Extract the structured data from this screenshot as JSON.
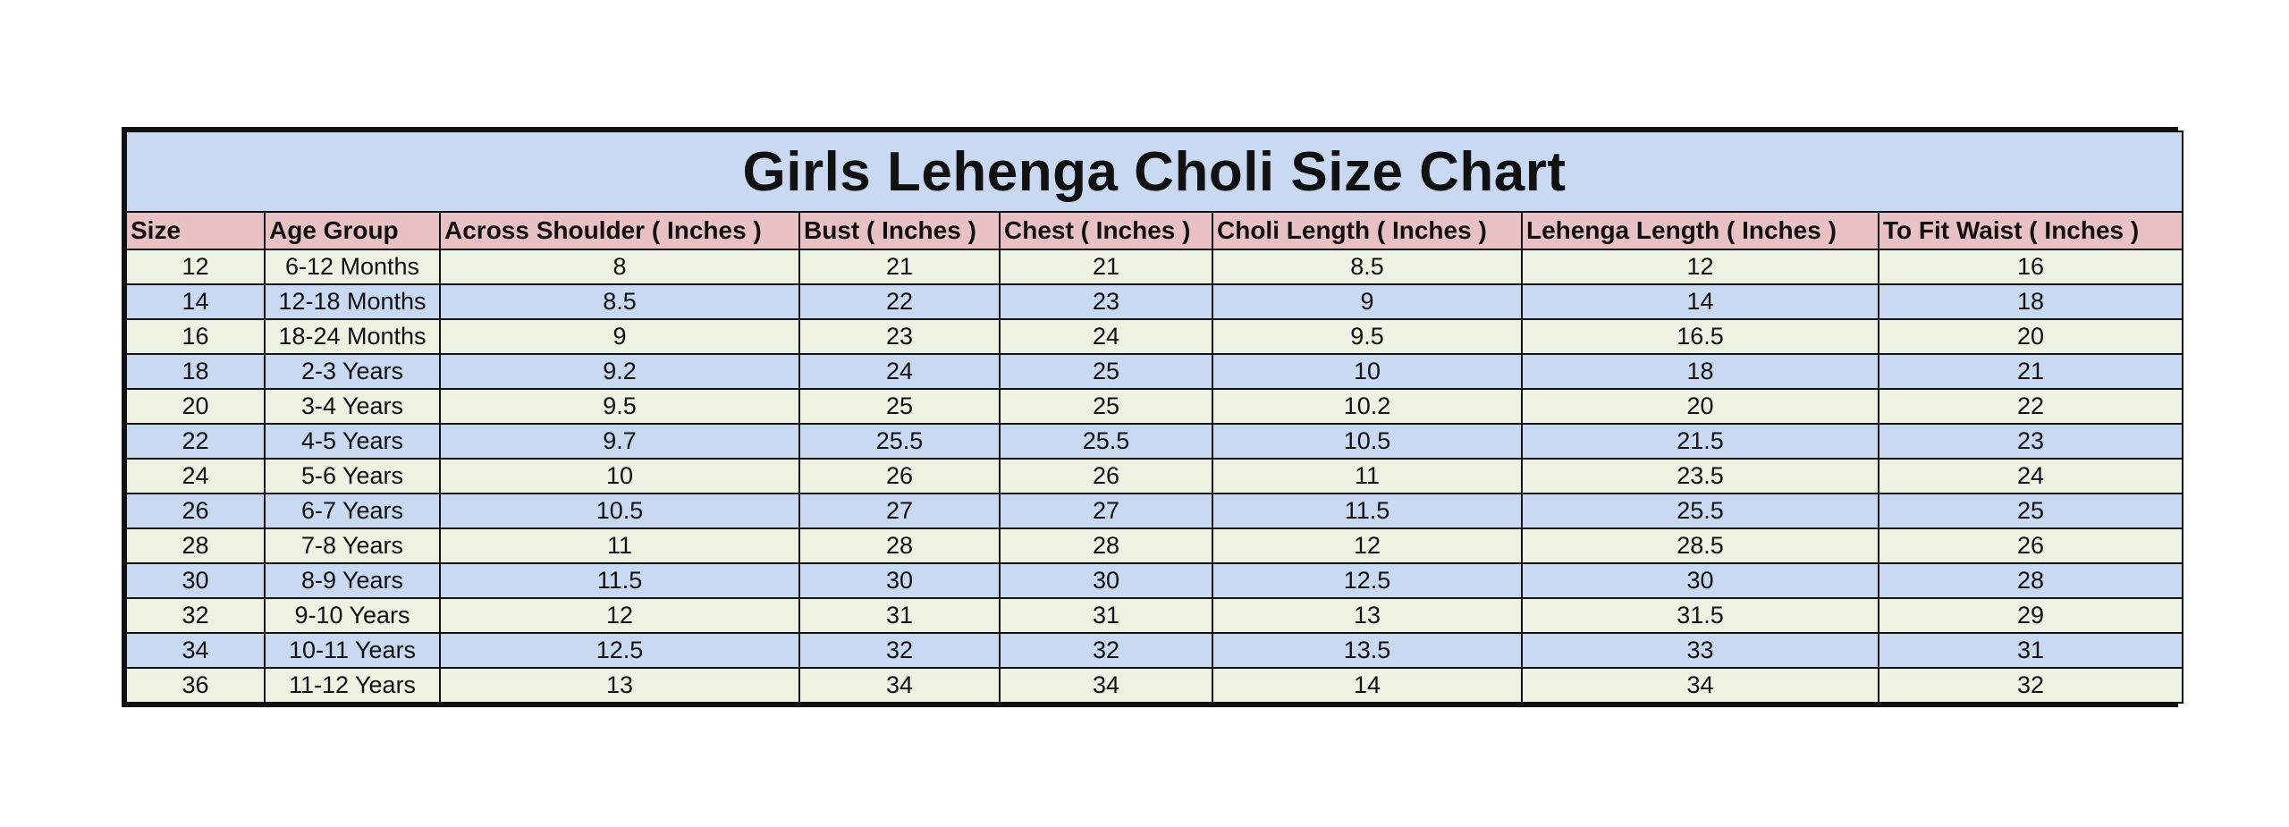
{
  "title": "Girls Lehenga Choli Size Chart",
  "columns": [
    "Size",
    "Age Group",
    "Across Shoulder ( Inches )",
    "Bust ( Inches )",
    "Chest ( Inches )",
    "Choli Length ( Inches )",
    "Lehenga Length ( Inches )",
    "To Fit Waist ( Inches )"
  ],
  "rows": [
    [
      "12",
      "6-12 Months",
      "8",
      "21",
      "21",
      "8.5",
      "12",
      "16"
    ],
    [
      "14",
      "12-18 Months",
      "8.5",
      "22",
      "23",
      "9",
      "14",
      "18"
    ],
    [
      "16",
      "18-24 Months",
      "9",
      "23",
      "24",
      "9.5",
      "16.5",
      "20"
    ],
    [
      "18",
      "2-3 Years",
      "9.2",
      "24",
      "25",
      "10",
      "18",
      "21"
    ],
    [
      "20",
      "3-4 Years",
      "9.5",
      "25",
      "25",
      "10.2",
      "20",
      "22"
    ],
    [
      "22",
      "4-5 Years",
      "9.7",
      "25.5",
      "25.5",
      "10.5",
      "21.5",
      "23"
    ],
    [
      "24",
      "5-6 Years",
      "10",
      "26",
      "26",
      "11",
      "23.5",
      "24"
    ],
    [
      "26",
      "6-7 Years",
      "10.5",
      "27",
      "27",
      "11.5",
      "25.5",
      "25"
    ],
    [
      "28",
      "7-8 Years",
      "11",
      "28",
      "28",
      "12",
      "28.5",
      "26"
    ],
    [
      "30",
      "8-9 Years",
      "11.5",
      "30",
      "30",
      "12.5",
      "30",
      "28"
    ],
    [
      "32",
      "9-10 Years",
      "12",
      "31",
      "31",
      "13",
      "31.5",
      "29"
    ],
    [
      "34",
      "10-11 Years",
      "12.5",
      "32",
      "32",
      "13.5",
      "33",
      "31"
    ],
    [
      "36",
      "11-12 Years",
      "13",
      "34",
      "34",
      "14",
      "34",
      "32"
    ]
  ],
  "colors": {
    "title_bg": "#c9d9f2",
    "header_bg": "#e9c0c3",
    "row_odd_bg": "#eef2e2",
    "row_even_bg": "#c9d9f2",
    "border": "#111111"
  }
}
